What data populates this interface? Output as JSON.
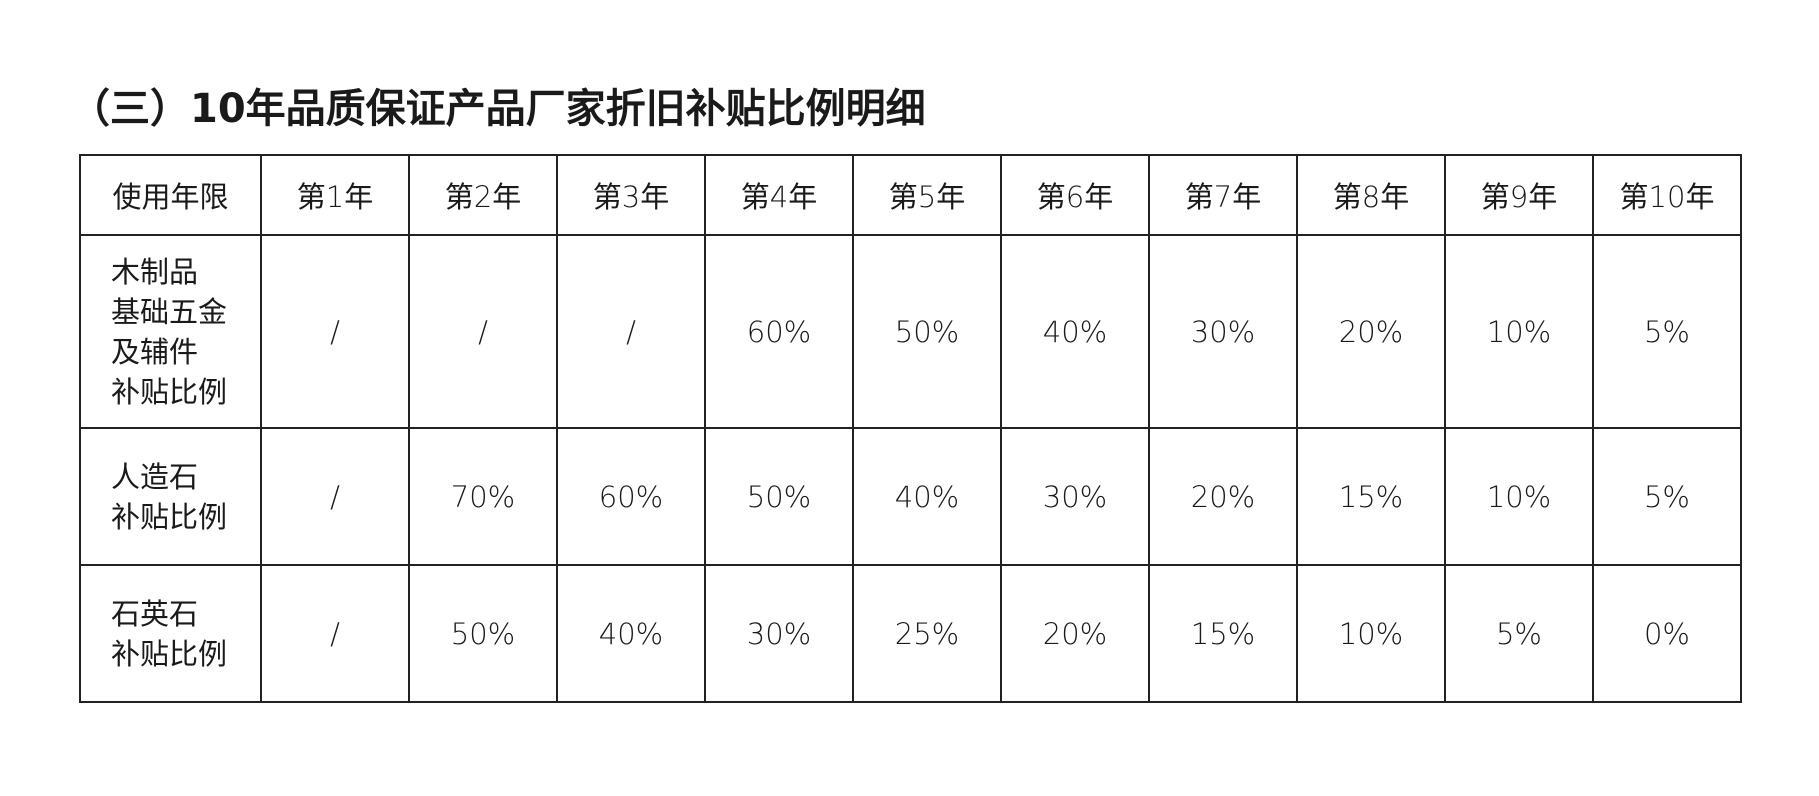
{
  "title": "（三）10年品质保证产品厂家折旧补贴比例明细",
  "table": {
    "header": [
      "使用年限",
      "第1年",
      "第2年",
      "第3年",
      "第4年",
      "第5年",
      "第6年",
      "第7年",
      "第8年",
      "第9年",
      "第10年"
    ],
    "rows": [
      {
        "label_lines": [
          "木制品",
          "基础五金",
          "及辅件",
          "补贴比例"
        ],
        "values": [
          "/",
          "/",
          "/",
          "60%",
          "50%",
          "40%",
          "30%",
          "20%",
          "10%",
          "5%"
        ]
      },
      {
        "label_lines": [
          "人造石",
          "补贴比例"
        ],
        "values": [
          "/",
          "70%",
          "60%",
          "50%",
          "40%",
          "30%",
          "20%",
          "15%",
          "10%",
          "5%"
        ]
      },
      {
        "label_lines": [
          "石英石",
          "补贴比例"
        ],
        "values": [
          "/",
          "50%",
          "40%",
          "30%",
          "25%",
          "20%",
          "15%",
          "10%",
          "5%",
          "0%"
        ]
      }
    ]
  }
}
